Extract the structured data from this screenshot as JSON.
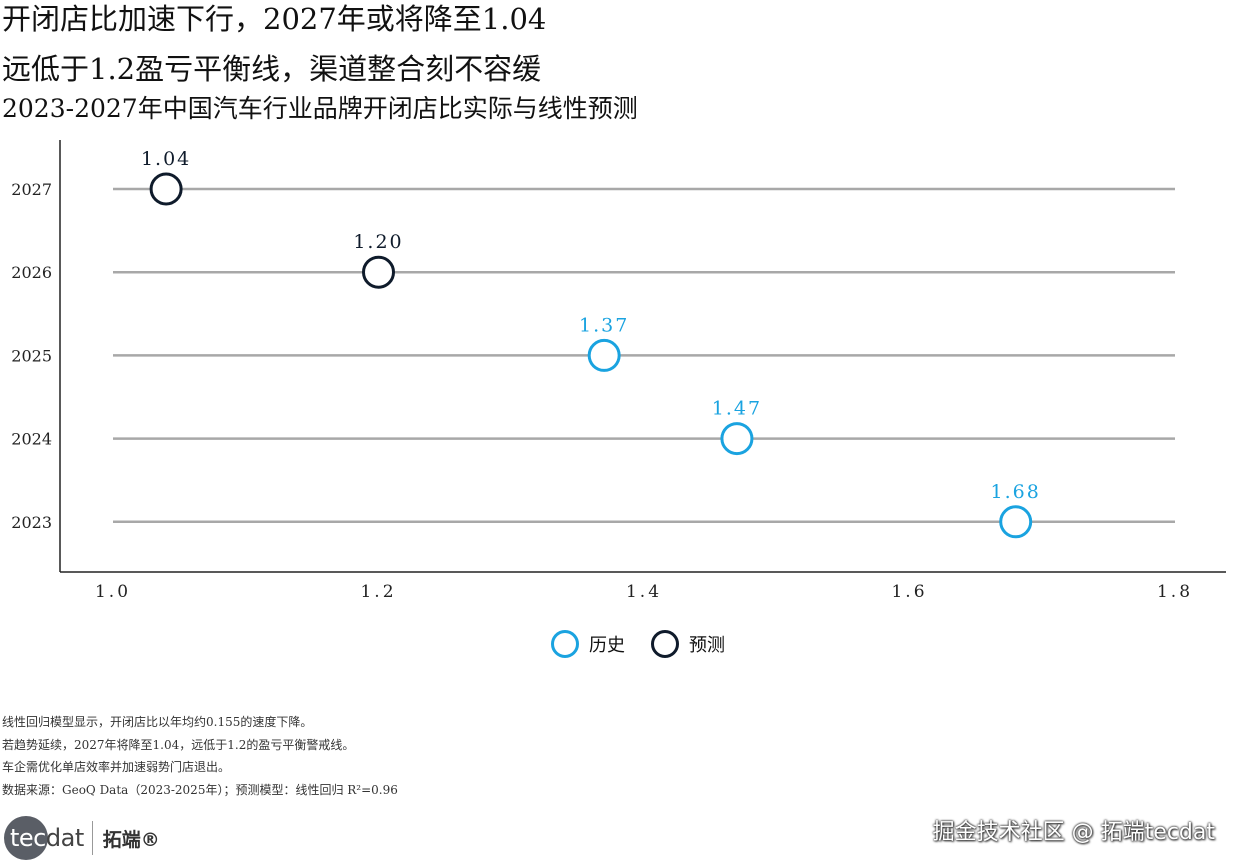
{
  "title_lines": [
    "开闭店比加速下行，2027年或将降至1.04",
    "远低于1.2盈亏平衡线，渠道整合刻不容缓"
  ],
  "subtitle": "2023-2027年中国汽车行业品牌开闭店比实际与线性预测",
  "chart_data": {
    "type": "scatter",
    "orientation": "horizontal-dot",
    "categories": [
      "2027",
      "2026",
      "2025",
      "2024",
      "2023"
    ],
    "xlim": [
      1.0,
      1.8
    ],
    "x_ticks": [
      "1.0",
      "1.2",
      "1.4",
      "1.6",
      "1.8"
    ],
    "series": [
      {
        "name": "历史",
        "color": "#1aa3e0",
        "points": [
          {
            "year": "2025",
            "value": 1.37,
            "label": "1.37"
          },
          {
            "year": "2024",
            "value": 1.47,
            "label": "1.47"
          },
          {
            "year": "2023",
            "value": 1.68,
            "label": "1.68"
          }
        ]
      },
      {
        "name": "预测",
        "color": "#0f1b2b",
        "points": [
          {
            "year": "2027",
            "value": 1.04,
            "label": "1.04"
          },
          {
            "year": "2026",
            "value": 1.2,
            "label": "1.20"
          }
        ]
      }
    ],
    "gridline_color": "#a8a8a8",
    "legend_position": "bottom-center"
  },
  "legend": [
    {
      "label": "历史",
      "color": "#1aa3e0"
    },
    {
      "label": "预测",
      "color": "#0f1b2b"
    }
  ],
  "notes": [
    "线性回归模型显示，开闭店比以年均约0.155的速度下降。",
    "若趋势延续，2027年将降至1.04，远低于1.2的盈亏平衡警戒线。",
    "车企需优化单店效率并加速弱势门店退出。",
    "数据来源：GeoQ Data（2023-2025年）；预测模型：线性回归 R²=0.96"
  ],
  "logo": {
    "mark_prefix": "tec",
    "mark_rest": "dat",
    "cn": "拓端®"
  },
  "watermark": "掘金技术社区 @ 拓端tecdat"
}
